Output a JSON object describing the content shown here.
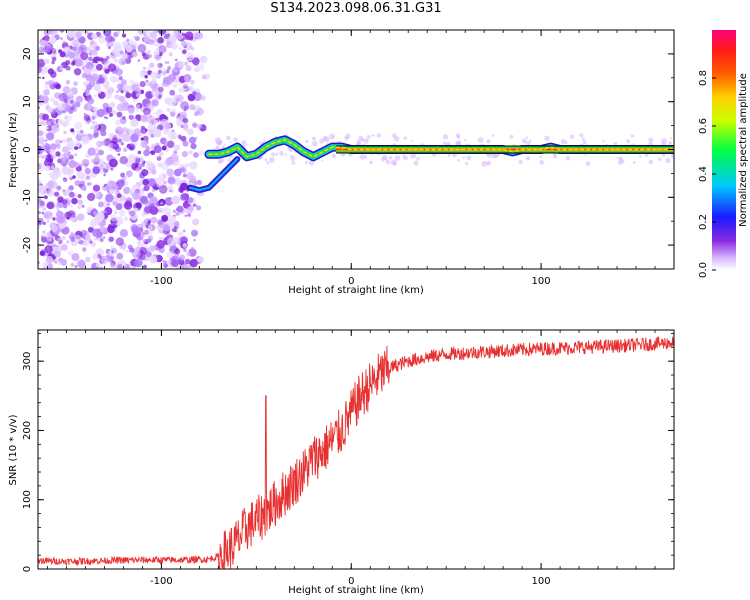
{
  "figure_title": "S134.2023.098.06.31.G31",
  "colors": {
    "snr_line": "#e83030",
    "spectrogram_noise": "#8a2be2",
    "frame": "#000000"
  },
  "chart_data": [
    {
      "type": "heatmap",
      "title": "",
      "xlabel": "Height of straight line (km)",
      "ylabel": "Frequency (Hz)",
      "xlim": [
        -165,
        170
      ],
      "ylim": [
        -25,
        25
      ],
      "x_ticks": [
        -100,
        0,
        100
      ],
      "x_tick_labels": [
        "-100",
        "0",
        "100"
      ],
      "y_ticks": [
        -20,
        -10,
        0,
        10,
        20
      ],
      "y_tick_labels": [
        "-20",
        "-10",
        "0",
        "10",
        "20"
      ],
      "x_tick_labels_shown": [
        "-100",
        "0",
        "100"
      ],
      "grid": false,
      "noise_region_x": [
        -165,
        -75
      ],
      "ridge": {
        "description": "dominant frequency track",
        "x": [
          -75,
          -70,
          -65,
          -60,
          -55,
          -50,
          -45,
          -40,
          -35,
          -30,
          -25,
          -20,
          -15,
          -10,
          -5,
          0,
          10,
          20,
          40,
          60,
          80,
          85,
          90,
          100,
          105,
          110,
          130,
          150,
          170
        ],
        "y": [
          -1,
          -1,
          -0.5,
          0.5,
          -1.5,
          -1,
          0.5,
          1.5,
          2,
          1,
          -0.5,
          -1.5,
          -0.5,
          0.5,
          0.5,
          0,
          0,
          0,
          0,
          0,
          0,
          -0.5,
          0,
          0,
          0.5,
          0,
          0,
          0,
          0
        ]
      },
      "secondary_track": {
        "x": [
          -85,
          -80,
          -75,
          -70,
          -65,
          -60
        ],
        "y": [
          -8,
          -8.5,
          -8,
          -6,
          -4,
          -2
        ]
      },
      "colorbar": {
        "label": "Normalized spectral amplitude",
        "range": [
          0,
          1
        ],
        "ticks": [
          0.0,
          0.2,
          0.4,
          0.6,
          0.8
        ],
        "tick_labels": [
          "0.0",
          "0.2",
          "0.4",
          "0.6",
          "0.8"
        ],
        "colormap": "hsv-like: violet, blue, cyan, green, yellow, orange, red, pink"
      }
    },
    {
      "type": "line",
      "title": "",
      "xlabel": "Height of straight line (km)",
      "ylabel": "SNR (10 * v/v)",
      "xlim": [
        -165,
        170
      ],
      "ylim": [
        0,
        345
      ],
      "x_ticks": [
        -100,
        0,
        100
      ],
      "x_tick_labels": [
        "-100",
        "0",
        "100"
      ],
      "y_ticks": [
        0,
        100,
        200,
        300
      ],
      "y_tick_labels": [
        "0",
        "100",
        "200",
        "300"
      ],
      "grid": false,
      "series": [
        {
          "x": [
            -165,
            -150,
            -130,
            -110,
            -90,
            -75,
            -70,
            -65,
            -60,
            -55,
            -50,
            -45,
            -40,
            -35,
            -30,
            -25,
            -20,
            -15,
            -10,
            -5,
            0,
            5,
            10,
            15,
            20,
            30,
            40,
            50,
            60,
            80,
            100,
            120,
            140,
            160,
            170
          ],
          "y": [
            12,
            11,
            12,
            13,
            13,
            14,
            18,
            25,
            40,
            60,
            70,
            80,
            95,
            110,
            125,
            140,
            160,
            170,
            185,
            200,
            225,
            250,
            265,
            280,
            290,
            300,
            306,
            310,
            312,
            315,
            318,
            320,
            322,
            325,
            327
          ]
        }
      ],
      "spike": {
        "x": -45,
        "y": 250
      }
    }
  ]
}
